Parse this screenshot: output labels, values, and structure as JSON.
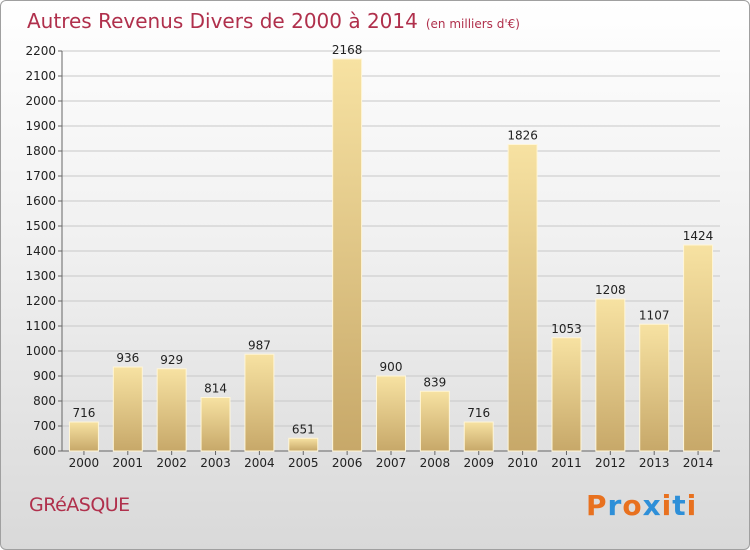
{
  "chart_data": {
    "type": "bar",
    "title": "Autres Revenus Divers de 2000 à 2014",
    "unit": "(en milliers d'€)",
    "categories": [
      "2000",
      "2001",
      "2002",
      "2003",
      "2004",
      "2005",
      "2006",
      "2007",
      "2008",
      "2009",
      "2010",
      "2011",
      "2012",
      "2013",
      "2014"
    ],
    "values": [
      716,
      936,
      929,
      814,
      987,
      651,
      2168,
      900,
      839,
      716,
      1826,
      1053,
      1208,
      1107,
      1424
    ],
    "ylim": [
      600,
      2200
    ],
    "yticks": [
      600,
      700,
      800,
      900,
      1000,
      1100,
      1200,
      1300,
      1400,
      1500,
      1600,
      1700,
      1800,
      1900,
      2000,
      2100,
      2200
    ],
    "grid": true,
    "bar_color": "#e2c57f"
  },
  "footer": {
    "city": "GRéASQUE",
    "logo": "Proxiti",
    "logo_colors": [
      "#e8711f",
      "#2e8fd8",
      "#e8711f",
      "#2e8fd8",
      "#e8711f",
      "#2e8fd8",
      "#e8711f"
    ]
  }
}
